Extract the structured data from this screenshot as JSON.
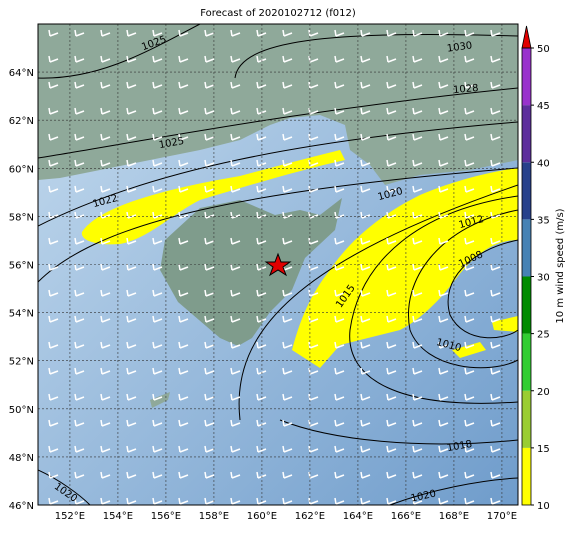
{
  "title": "Forecast of 2020102712 (f012)",
  "map": {
    "lon_range": [
      150.67,
      170.67
    ],
    "lat_range": [
      46,
      66
    ],
    "lon_ticks": [
      {
        "value": 152,
        "label": "152°E"
      },
      {
        "value": 154,
        "label": "154°E"
      },
      {
        "value": 156,
        "label": "156°E"
      },
      {
        "value": 158,
        "label": "158°E"
      },
      {
        "value": 160,
        "label": "160°E"
      },
      {
        "value": 162,
        "label": "162°E"
      },
      {
        "value": 164,
        "label": "164°E"
      },
      {
        "value": 166,
        "label": "166°E"
      },
      {
        "value": 168,
        "label": "168°E"
      },
      {
        "value": 170,
        "label": "170°E"
      }
    ],
    "lat_ticks": [
      {
        "value": 46,
        "label": "46°N"
      },
      {
        "value": 48,
        "label": "48°N"
      },
      {
        "value": 50,
        "label": "50°N"
      },
      {
        "value": 52,
        "label": "52°N"
      },
      {
        "value": 54,
        "label": "54°N"
      },
      {
        "value": 56,
        "label": "56°N"
      },
      {
        "value": 58,
        "label": "58°N"
      },
      {
        "value": 60,
        "label": "60°N"
      },
      {
        "value": 62,
        "label": "62°N"
      },
      {
        "value": 64,
        "label": "64°N"
      }
    ],
    "contour_labels": [
      "1025",
      "1030",
      "1028",
      "1025",
      "1022",
      "1020",
      "1012",
      "1008",
      "1015",
      "1010",
      "1018",
      "1020",
      "1020"
    ]
  },
  "colorbar": {
    "label": "10 m wind speed (m/s)",
    "range": [
      10,
      50
    ],
    "ticks": [
      10,
      15,
      20,
      25,
      30,
      35,
      40,
      45,
      50
    ],
    "colors": [
      "#ffff00",
      "#9acd32",
      "#32cd32",
      "#008b00",
      "#4682b4",
      "#27408b",
      "#5d2e9c",
      "#9932cc"
    ],
    "extend_color": "#e00000"
  }
}
